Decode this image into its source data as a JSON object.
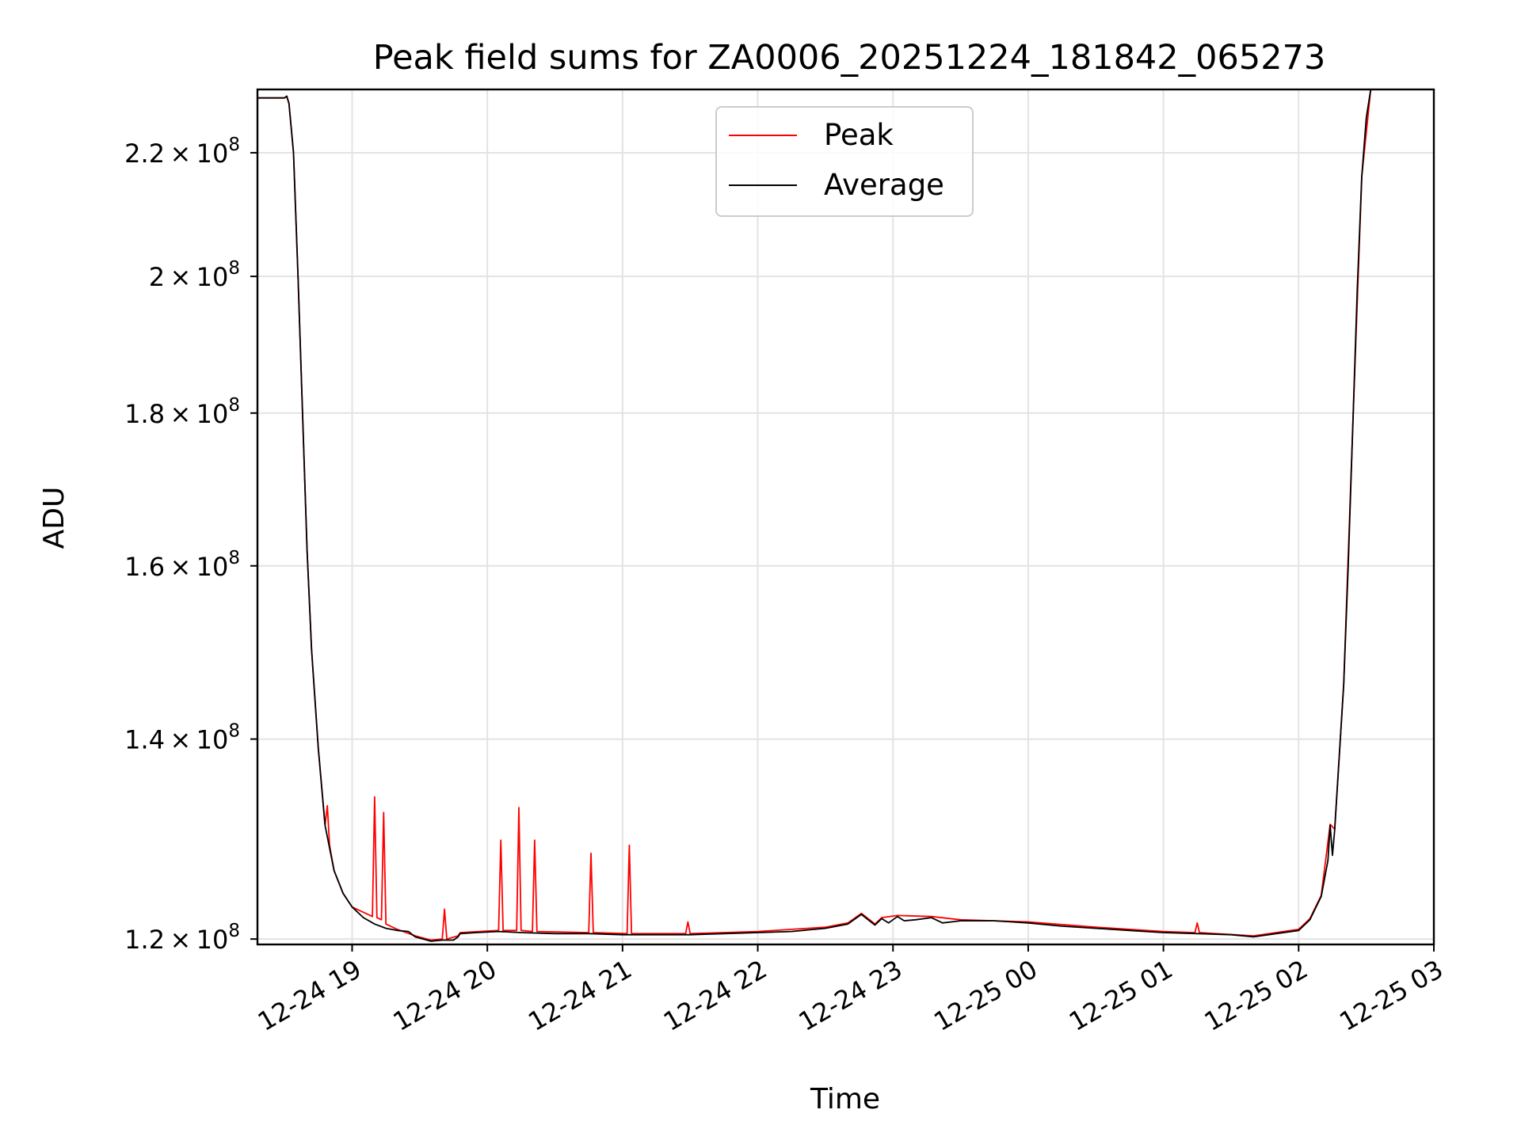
{
  "chart_data": {
    "type": "line",
    "title": "Peak field sums for ZA0006_20251224_181842_065273",
    "xlabel": "Time",
    "ylabel": "ADU",
    "y_scale": "log",
    "grid": true,
    "legend_position": "top-center",
    "xlim": [
      "2025-12-24 18:18",
      "2025-12-25 03:00"
    ],
    "ylim": [
      119500000,
      231000000
    ],
    "x_ticks": [
      {
        "time": "2025-12-24 19:00",
        "label": "12-24 19"
      },
      {
        "time": "2025-12-24 20:00",
        "label": "12-24 20"
      },
      {
        "time": "2025-12-24 21:00",
        "label": "12-24 21"
      },
      {
        "time": "2025-12-24 22:00",
        "label": "12-24 22"
      },
      {
        "time": "2025-12-24 23:00",
        "label": "12-24 23"
      },
      {
        "time": "2025-12-25 00:00",
        "label": "12-25 00"
      },
      {
        "time": "2025-12-25 01:00",
        "label": "12-25 01"
      },
      {
        "time": "2025-12-25 02:00",
        "label": "12-25 02"
      },
      {
        "time": "2025-12-25 03:00",
        "label": "12-25 03"
      }
    ],
    "y_ticks": [
      {
        "value": 120000000,
        "mantissa": "1.2",
        "exp": "8"
      },
      {
        "value": 140000000,
        "mantissa": "1.4",
        "exp": "8"
      },
      {
        "value": 160000000,
        "mantissa": "1.6",
        "exp": "8"
      },
      {
        "value": 180000000,
        "mantissa": "1.8",
        "exp": "8"
      },
      {
        "value": 200000000,
        "mantissa": "2",
        "exp": "8"
      },
      {
        "value": 220000000,
        "mantissa": "2.2",
        "exp": "8"
      }
    ],
    "series": [
      {
        "name": "Average",
        "color": "#000000",
        "points": [
          [
            "2025-12-24 18:18",
            229500000
          ],
          [
            "2025-12-24 18:30",
            229500000
          ],
          [
            "2025-12-24 18:31",
            229800000
          ],
          [
            "2025-12-24 18:32",
            228500000
          ],
          [
            "2025-12-24 18:34",
            220000000
          ],
          [
            "2025-12-24 18:36",
            200000000
          ],
          [
            "2025-12-24 18:38",
            180000000
          ],
          [
            "2025-12-24 18:40",
            162000000
          ],
          [
            "2025-12-24 18:42",
            150000000
          ],
          [
            "2025-12-24 18:45",
            139000000
          ],
          [
            "2025-12-24 18:48",
            131000000
          ],
          [
            "2025-12-24 18:52",
            126500000
          ],
          [
            "2025-12-24 18:56",
            124300000
          ],
          [
            "2025-12-24 19:00",
            123000000
          ],
          [
            "2025-12-24 19:05",
            122000000
          ],
          [
            "2025-12-24 19:10",
            121400000
          ],
          [
            "2025-12-24 19:15",
            121000000
          ],
          [
            "2025-12-24 19:20",
            120800000
          ],
          [
            "2025-12-24 19:25",
            120700000
          ],
          [
            "2025-12-24 19:28",
            120200000
          ],
          [
            "2025-12-24 19:35",
            119800000
          ],
          [
            "2025-12-24 19:40",
            119900000
          ],
          [
            "2025-12-24 19:45",
            119900000
          ],
          [
            "2025-12-24 19:47",
            120200000
          ],
          [
            "2025-12-24 19:48",
            120500000
          ],
          [
            "2025-12-24 19:55",
            120600000
          ],
          [
            "2025-12-24 20:05",
            120700000
          ],
          [
            "2025-12-24 20:15",
            120600000
          ],
          [
            "2025-12-24 20:30",
            120500000
          ],
          [
            "2025-12-24 20:45",
            120500000
          ],
          [
            "2025-12-24 21:00",
            120400000
          ],
          [
            "2025-12-24 21:15",
            120400000
          ],
          [
            "2025-12-24 21:30",
            120400000
          ],
          [
            "2025-12-24 21:45",
            120500000
          ],
          [
            "2025-12-24 22:00",
            120600000
          ],
          [
            "2025-12-24 22:15",
            120700000
          ],
          [
            "2025-12-24 22:30",
            121000000
          ],
          [
            "2025-12-24 22:40",
            121400000
          ],
          [
            "2025-12-24 22:46",
            122300000
          ],
          [
            "2025-12-24 22:49",
            121800000
          ],
          [
            "2025-12-24 22:52",
            121300000
          ],
          [
            "2025-12-24 22:55",
            121900000
          ],
          [
            "2025-12-24 22:58",
            121500000
          ],
          [
            "2025-12-24 23:02",
            122100000
          ],
          [
            "2025-12-24 23:05",
            121700000
          ],
          [
            "2025-12-24 23:10",
            121800000
          ],
          [
            "2025-12-24 23:17",
            122000000
          ],
          [
            "2025-12-24 23:22",
            121500000
          ],
          [
            "2025-12-24 23:30",
            121700000
          ],
          [
            "2025-12-24 23:45",
            121700000
          ],
          [
            "2025-12-25 00:00",
            121500000
          ],
          [
            "2025-12-25 00:15",
            121200000
          ],
          [
            "2025-12-25 00:30",
            121000000
          ],
          [
            "2025-12-25 00:45",
            120800000
          ],
          [
            "2025-12-25 01:00",
            120600000
          ],
          [
            "2025-12-25 01:15",
            120500000
          ],
          [
            "2025-12-25 01:30",
            120400000
          ],
          [
            "2025-12-25 01:40",
            120200000
          ],
          [
            "2025-12-25 01:50",
            120500000
          ],
          [
            "2025-12-25 02:00",
            120800000
          ],
          [
            "2025-12-25 02:05",
            121800000
          ],
          [
            "2025-12-25 02:10",
            124000000
          ],
          [
            "2025-12-25 02:13",
            127500000
          ],
          [
            "2025-12-25 02:14",
            131000000
          ],
          [
            "2025-12-25 02:15",
            128000000
          ],
          [
            "2025-12-25 02:16",
            130500000
          ],
          [
            "2025-12-25 02:18",
            138000000
          ],
          [
            "2025-12-25 02:20",
            146000000
          ],
          [
            "2025-12-25 02:22",
            160000000
          ],
          [
            "2025-12-25 02:24",
            178000000
          ],
          [
            "2025-12-25 02:26",
            198000000
          ],
          [
            "2025-12-25 02:28",
            216000000
          ],
          [
            "2025-12-25 02:30",
            226000000
          ],
          [
            "2025-12-25 02:32",
            231000000
          ]
        ]
      },
      {
        "name": "Peak",
        "color": "#ff0000",
        "points": [
          [
            "2025-12-24 18:18",
            229500000
          ],
          [
            "2025-12-24 18:30",
            229500000
          ],
          [
            "2025-12-24 18:31",
            229800000
          ],
          [
            "2025-12-24 18:32",
            228500000
          ],
          [
            "2025-12-24 18:34",
            220000000
          ],
          [
            "2025-12-24 18:36",
            200000000
          ],
          [
            "2025-12-24 18:38",
            180000000
          ],
          [
            "2025-12-24 18:40",
            162000000
          ],
          [
            "2025-12-24 18:41",
            156000000
          ],
          [
            "2025-12-24 18:42",
            150000000
          ],
          [
            "2025-12-24 18:45",
            139000000
          ],
          [
            "2025-12-24 18:48",
            131000000
          ],
          [
            "2025-12-24 18:49",
            133000000
          ],
          [
            "2025-12-24 18:50",
            129000000
          ],
          [
            "2025-12-24 18:52",
            126500000
          ],
          [
            "2025-12-24 18:56",
            124300000
          ],
          [
            "2025-12-24 19:00",
            123000000
          ],
          [
            "2025-12-24 19:09",
            122100000
          ],
          [
            "2025-12-24 19:10",
            133900000
          ],
          [
            "2025-12-24 19:11",
            122000000
          ],
          [
            "2025-12-24 19:13",
            121800000
          ],
          [
            "2025-12-24 19:14",
            132300000
          ],
          [
            "2025-12-24 19:15",
            121400000
          ],
          [
            "2025-12-24 19:20",
            120900000
          ],
          [
            "2025-12-24 19:28",
            120300000
          ],
          [
            "2025-12-24 19:35",
            119900000
          ],
          [
            "2025-12-24 19:40",
            120000000
          ],
          [
            "2025-12-24 19:41",
            122800000
          ],
          [
            "2025-12-24 19:42",
            120000000
          ],
          [
            "2025-12-24 19:47",
            120300000
          ],
          [
            "2025-12-24 19:48",
            120600000
          ],
          [
            "2025-12-24 20:05",
            120800000
          ],
          [
            "2025-12-24 20:06",
            129500000
          ],
          [
            "2025-12-24 20:07",
            120800000
          ],
          [
            "2025-12-24 20:13",
            120800000
          ],
          [
            "2025-12-24 20:14",
            132800000
          ],
          [
            "2025-12-24 20:15",
            120800000
          ],
          [
            "2025-12-24 20:20",
            120700000
          ],
          [
            "2025-12-24 20:21",
            129500000
          ],
          [
            "2025-12-24 20:22",
            120700000
          ],
          [
            "2025-12-24 20:45",
            120600000
          ],
          [
            "2025-12-24 20:46",
            128200000
          ],
          [
            "2025-12-24 20:47",
            120600000
          ],
          [
            "2025-12-24 21:02",
            120500000
          ],
          [
            "2025-12-24 21:03",
            129000000
          ],
          [
            "2025-12-24 21:04",
            120500000
          ],
          [
            "2025-12-24 21:28",
            120500000
          ],
          [
            "2025-12-24 21:29",
            121600000
          ],
          [
            "2025-12-24 21:30",
            120500000
          ],
          [
            "2025-12-24 22:00",
            120700000
          ],
          [
            "2025-12-24 22:30",
            121100000
          ],
          [
            "2025-12-24 22:40",
            121500000
          ],
          [
            "2025-12-24 22:46",
            122400000
          ],
          [
            "2025-12-24 22:52",
            121400000
          ],
          [
            "2025-12-24 22:55",
            122000000
          ],
          [
            "2025-12-24 23:02",
            122200000
          ],
          [
            "2025-12-24 23:17",
            122100000
          ],
          [
            "2025-12-24 23:30",
            121800000
          ],
          [
            "2025-12-25 00:00",
            121600000
          ],
          [
            "2025-12-25 00:30",
            121100000
          ],
          [
            "2025-12-25 01:00",
            120700000
          ],
          [
            "2025-12-25 01:14",
            120600000
          ],
          [
            "2025-12-25 01:15",
            121500000
          ],
          [
            "2025-12-25 01:16",
            120600000
          ],
          [
            "2025-12-25 01:40",
            120300000
          ],
          [
            "2025-12-25 02:00",
            120900000
          ],
          [
            "2025-12-25 02:05",
            121900000
          ],
          [
            "2025-12-25 02:10",
            124100000
          ],
          [
            "2025-12-25 02:14",
            131100000
          ],
          [
            "2025-12-25 02:16",
            130600000
          ],
          [
            "2025-12-25 02:20",
            146100000
          ],
          [
            "2025-12-25 02:24",
            178000000
          ],
          [
            "2025-12-25 02:28",
            216000000
          ],
          [
            "2025-12-25 02:32",
            231000000
          ]
        ]
      }
    ],
    "legend": [
      {
        "name": "Peak",
        "color": "#ff0000"
      },
      {
        "name": "Average",
        "color": "#000000"
      }
    ]
  }
}
